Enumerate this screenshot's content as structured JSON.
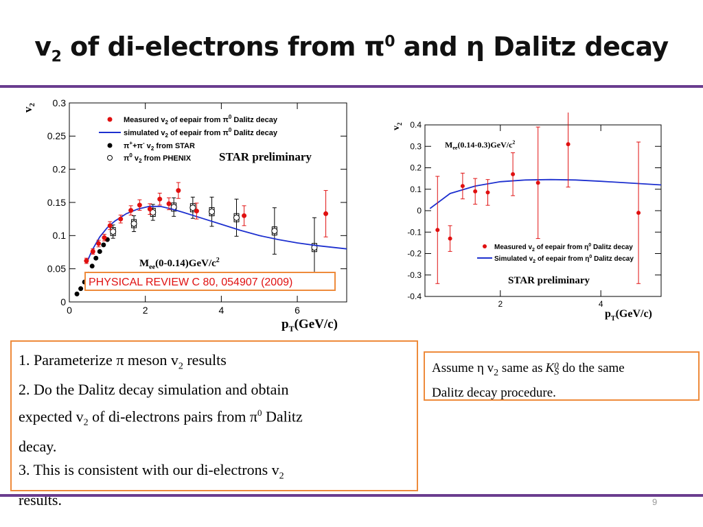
{
  "slide": {
    "title": {
      "pre": "v",
      "sub": "2",
      "mid": " of di-electrons from π",
      "sup": "0",
      "post": " and η Dalitz decay"
    },
    "page_number": "9",
    "colors": {
      "rule": "#6a3d8f",
      "box_border": "#ee8a3a",
      "model_curve": "#1c2fcf",
      "measured": "#e01010",
      "citation": "#e01010"
    }
  },
  "text_left": {
    "line1_pre": "1. Parameterize π meson v",
    "line1_sub": "2",
    "line1_post": "  results",
    "line2": "2. Do the Dalitz decay simulation and obtain",
    "line3_pre": "expected v",
    "line3_sub": "2",
    "line3_mid": " of di-electrons pairs from π",
    "line3_sup": "0",
    "line3_post": " Dalitz",
    "line4": "decay.",
    "line5_pre": "3. This is consistent with our di-electrons v",
    "line5_sub": "2",
    "line6": "results."
  },
  "text_right": {
    "pre": "Assume η v",
    "sub": "2",
    "mid": " same as",
    "k": "K",
    "k_sup": "0",
    "k_sub": "S",
    "post": " do the same",
    "line2": "Dalitz decay procedure."
  },
  "chart_data": [
    {
      "type": "scatter",
      "ylabel": "v",
      "ylabel_sub": "2",
      "xlabel": "p",
      "xlabel_sub": "T",
      "xlabel_post": "(GeV/c)",
      "xlim": [
        0,
        7.3
      ],
      "ylim": [
        0,
        0.3
      ],
      "xticks": [
        0,
        2,
        4,
        6
      ],
      "xtick_labels": [
        "0",
        "2",
        "4",
        "6"
      ],
      "yticks": [
        0,
        0.05,
        0.1,
        0.15,
        0.2,
        0.25,
        0.3
      ],
      "ytick_labels": [
        "0",
        "0.05",
        "0.1",
        "0.15",
        "0.2",
        "0.25",
        "0.3"
      ],
      "legend": [
        {
          "pre": "Measured v",
          "sub": "2",
          "mid": " of eepair from π",
          "sup": "0",
          "post": " Dalitz decay",
          "marker": "red-dot"
        },
        {
          "pre": "simulated v",
          "sub": "2",
          "mid": " of eepair from π",
          "sup": "0",
          "post": " Dalitz decay",
          "marker": "blue-line"
        },
        {
          "pre": "π",
          "sup": "+",
          "mid": "+π",
          "sup2": "-",
          "post": " v",
          "sub": "2",
          "post2": " from STAR",
          "marker": "black-dot"
        },
        {
          "pre": "π",
          "sup": "0",
          "post": " v",
          "sub": "2",
          "post2": " from PHENIX",
          "marker": "open-circle"
        }
      ],
      "annotations": {
        "preliminary": "STAR preliminary",
        "mass_pre": "M",
        "mass_sub": "ee",
        "mass_post": "(0-0.14)GeV/c",
        "mass_sup": "2",
        "citation": "PHYSICAL REVIEW C 80, 054907 (2009)"
      },
      "series": [
        {
          "name": "Measured v2 of eepair from π0 Dalitz decay",
          "color": "#e01010",
          "x": [
            0.45,
            0.62,
            0.77,
            0.92,
            1.07,
            1.35,
            1.62,
            1.85,
            2.12,
            2.38,
            2.62,
            2.87,
            3.35,
            4.6,
            6.75
          ],
          "y": [
            0.062,
            0.076,
            0.088,
            0.097,
            0.115,
            0.125,
            0.138,
            0.146,
            0.14,
            0.155,
            0.148,
            0.168,
            0.137,
            0.13,
            0.133
          ],
          "err": [
            0.004,
            0.004,
            0.005,
            0.005,
            0.006,
            0.006,
            0.007,
            0.008,
            0.008,
            0.009,
            0.009,
            0.012,
            0.012,
            0.015,
            0.035
          ]
        },
        {
          "name": "simulated v2 of eepair from π0 Dalitz decay",
          "color": "#1c2fcf",
          "x": [
            0.45,
            0.6,
            0.8,
            1.0,
            1.2,
            1.5,
            1.8,
            2.1,
            2.4,
            2.7,
            3.0,
            3.5,
            4.0,
            4.5,
            5.0,
            5.5,
            6.0,
            6.5,
            7.3
          ],
          "y": [
            0.058,
            0.078,
            0.098,
            0.112,
            0.122,
            0.133,
            0.14,
            0.144,
            0.144,
            0.14,
            0.135,
            0.126,
            0.117,
            0.108,
            0.1,
            0.094,
            0.089,
            0.085,
            0.08
          ]
        },
        {
          "name": "π++π- v2 from STAR",
          "color": "#000000",
          "x": [
            0.2,
            0.3,
            0.4,
            0.5,
            0.6,
            0.7,
            0.8,
            0.9,
            1.0
          ],
          "y": [
            0.012,
            0.02,
            0.03,
            0.042,
            0.054,
            0.066,
            0.076,
            0.086,
            0.094
          ]
        },
        {
          "name": "π0 v2 from PHENIX",
          "color": "#000000",
          "x": [
            1.15,
            1.7,
            2.2,
            2.75,
            3.25,
            3.75,
            4.4,
            5.4,
            6.45
          ],
          "y": [
            0.106,
            0.118,
            0.135,
            0.143,
            0.142,
            0.136,
            0.127,
            0.107,
            0.082
          ],
          "err": [
            0.01,
            0.012,
            0.012,
            0.014,
            0.016,
            0.022,
            0.028,
            0.035,
            0.045
          ]
        }
      ]
    },
    {
      "type": "scatter",
      "ylabel": "v",
      "ylabel_sub": "2",
      "xlabel": "p",
      "xlabel_sub": "T",
      "xlabel_post": "(GeV/c)",
      "xlim": [
        0.5,
        5.2
      ],
      "ylim": [
        -0.4,
        0.4
      ],
      "xticks": [
        2,
        4
      ],
      "xtick_labels": [
        "2",
        "4"
      ],
      "yticks": [
        -0.4,
        -0.3,
        -0.2,
        -0.1,
        0,
        0.1,
        0.2,
        0.3,
        0.4
      ],
      "ytick_labels": [
        "-0.4",
        "-0.3",
        "-0.2",
        "-0.1",
        "0",
        "0.1",
        "0.2",
        "0.3",
        "0.4"
      ],
      "legend": [
        {
          "pre": "Measured v",
          "sub": "2",
          "mid": " of eepair from η",
          "sup": "0",
          "post": " Dalitz decay",
          "marker": "red-dot"
        },
        {
          "pre": "Simulated v",
          "sub": "2",
          "mid": " of eepair from η",
          "sup": "0",
          "post": " Dalitz decay",
          "marker": "blue-line"
        }
      ],
      "annotations": {
        "mass_pre": "M",
        "mass_sub": "ee",
        "mass_post": "(0.14-0.3)GeV/c",
        "mass_sup": "2",
        "preliminary": "STAR preliminary"
      },
      "series": [
        {
          "name": "Measured v2 of eepair from η0 Dalitz decay",
          "color": "#e01010",
          "x": [
            0.75,
            1.0,
            1.25,
            1.5,
            1.75,
            2.25,
            2.75,
            3.35,
            4.75
          ],
          "y": [
            -0.09,
            -0.13,
            0.115,
            0.09,
            0.085,
            0.17,
            0.13,
            0.31,
            -0.01
          ],
          "err": [
            0.25,
            0.06,
            0.06,
            0.06,
            0.06,
            0.1,
            0.26,
            0.2,
            0.33
          ]
        },
        {
          "name": "Simulated v2 of eepair from η0 Dalitz decay",
          "color": "#1c2fcf",
          "x": [
            0.6,
            1.0,
            1.5,
            2.0,
            2.5,
            3.0,
            3.5,
            4.0,
            4.5,
            5.2
          ],
          "y": [
            0.01,
            0.08,
            0.115,
            0.135,
            0.143,
            0.145,
            0.143,
            0.137,
            0.13,
            0.12
          ]
        }
      ]
    }
  ]
}
